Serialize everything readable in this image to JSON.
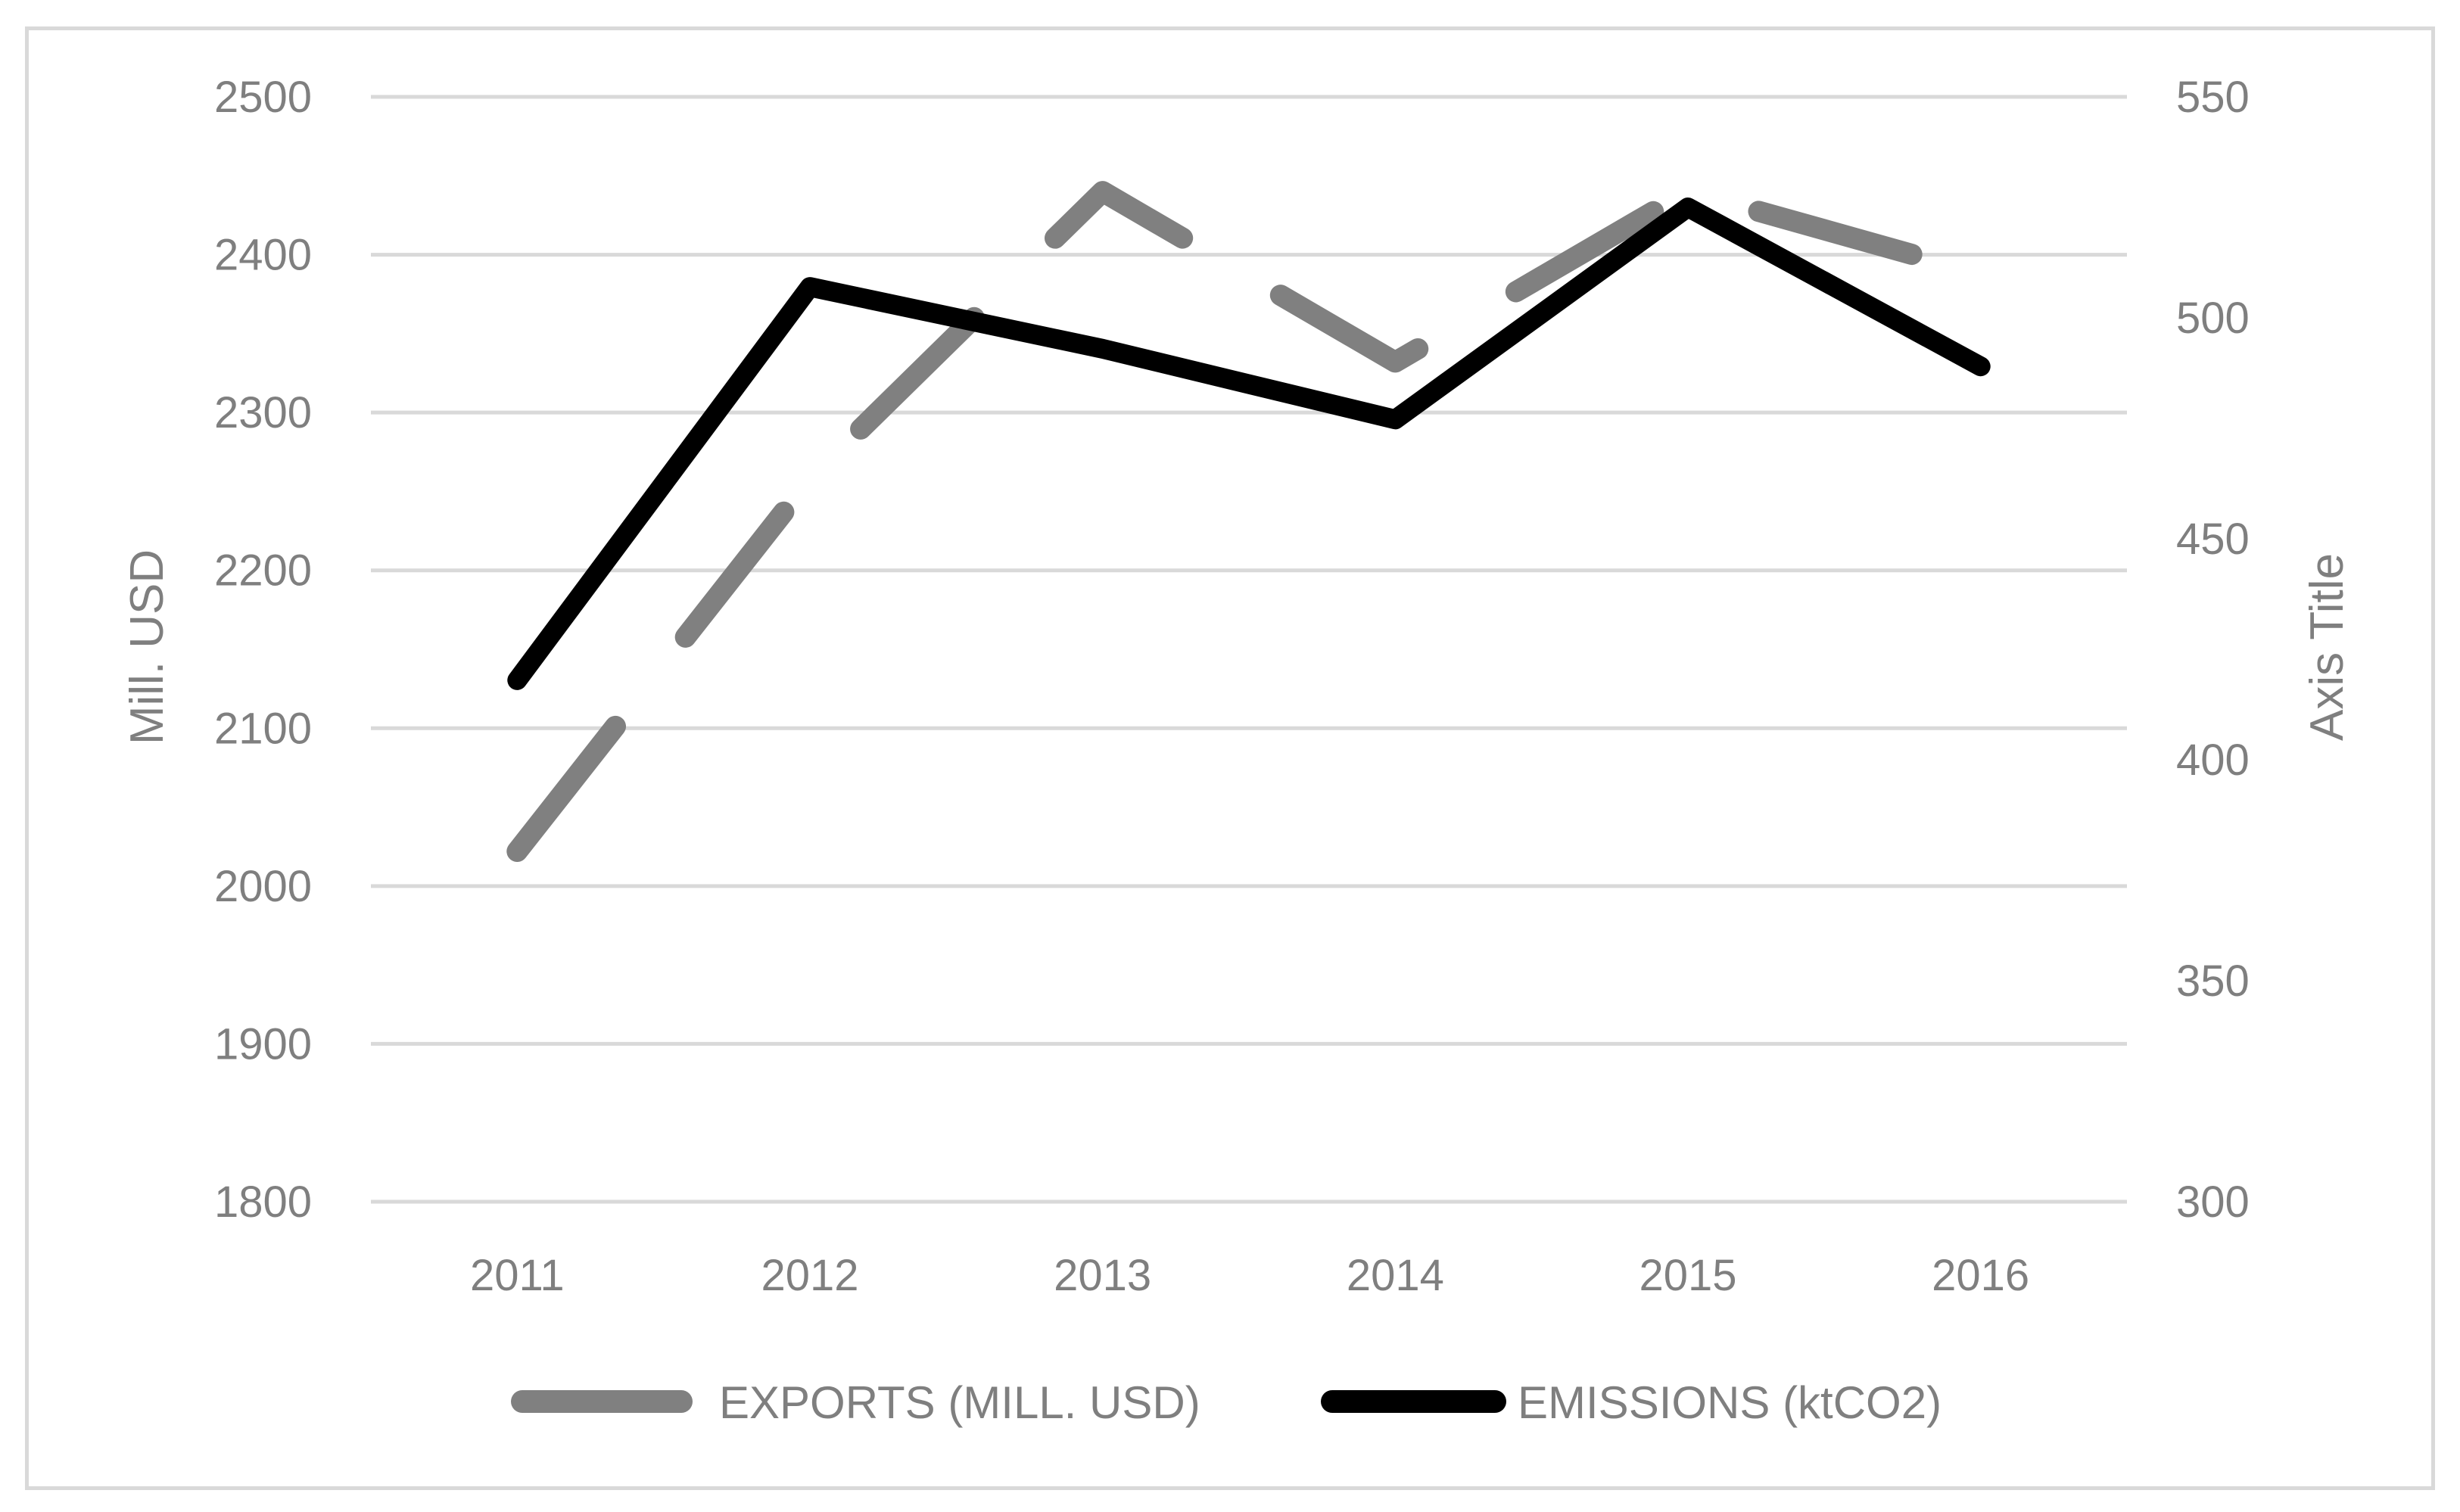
{
  "chart_data": {
    "type": "line",
    "title": "",
    "categories": [
      "2011",
      "2012",
      "2013",
      "2014",
      "2015",
      "2016"
    ],
    "left_axis": {
      "label": "Mill. USD",
      "range": [
        1800,
        2500
      ],
      "ticks": [
        "1800",
        "1900",
        "2000",
        "2100",
        "2200",
        "2300",
        "2400",
        "2500"
      ]
    },
    "right_axis": {
      "label": "Axis Title",
      "range": [
        300,
        550
      ],
      "ticks": [
        "300",
        "350",
        "400",
        "450",
        "500",
        "550"
      ]
    },
    "series": [
      {
        "name": "EXPORTS (MILL. USD)",
        "axis": "left",
        "style": "dashed",
        "color": "#808080",
        "values": [
          2022,
          2258,
          2440,
          2332,
          2440,
          2388
        ]
      },
      {
        "name": "EMISSIONS (ktCO2)",
        "axis": "right",
        "style": "solid",
        "color": "#000000",
        "values": [
          418,
          507,
          493,
          477,
          525,
          489
        ]
      }
    ],
    "grid": true,
    "legend_position": "bottom"
  },
  "colors": {
    "gridline": "#d9d9d9",
    "axis_text": "#7f7f7f",
    "frame_border": "#d9d9d9"
  }
}
